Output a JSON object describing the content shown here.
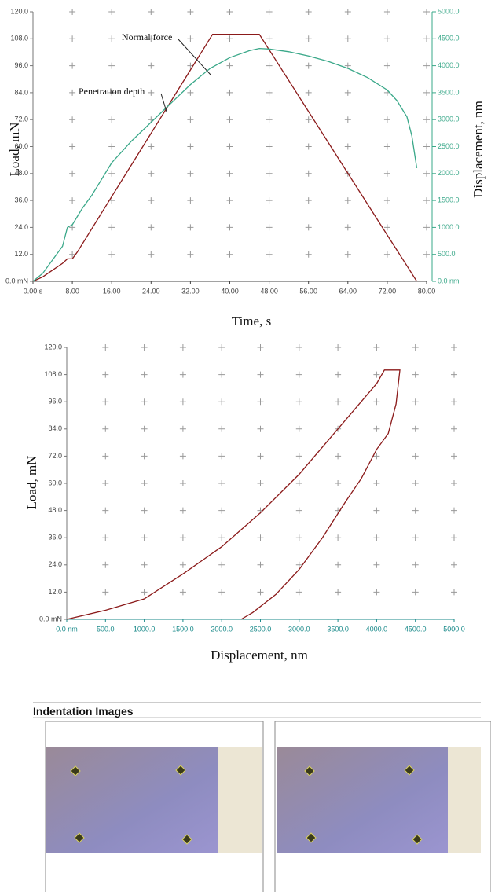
{
  "chart_data": [
    {
      "type": "line",
      "y_label": "Load, mN",
      "y2_label": "Displacement, nm",
      "x_label": "Time, s",
      "xlim": [
        0,
        80
      ],
      "xticks": [
        {
          "value": 0,
          "label": "0.00 s"
        },
        {
          "value": 8,
          "label": "8.00"
        },
        {
          "value": 16,
          "label": "16.00"
        },
        {
          "value": 24,
          "label": "24.00"
        },
        {
          "value": 32,
          "label": "32.00"
        },
        {
          "value": 40,
          "label": "40.00"
        },
        {
          "value": 48,
          "label": "48.00"
        },
        {
          "value": 56,
          "label": "56.00"
        },
        {
          "value": 64,
          "label": "64.00"
        },
        {
          "value": 72,
          "label": "72.00"
        },
        {
          "value": 80,
          "label": "80.00"
        }
      ],
      "ylim": [
        0,
        120
      ],
      "yticks": [
        {
          "value": 0,
          "label": "0.0 mN"
        },
        {
          "value": 12,
          "label": "12.0"
        },
        {
          "value": 24,
          "label": "24.0"
        },
        {
          "value": 36,
          "label": "36.0"
        },
        {
          "value": 48,
          "label": "48.0"
        },
        {
          "value": 60,
          "label": "60.0"
        },
        {
          "value": 72,
          "label": "72.0"
        },
        {
          "value": 84,
          "label": "84.0"
        },
        {
          "value": 96,
          "label": "96.0"
        },
        {
          "value": 108,
          "label": "108.0"
        },
        {
          "value": 120,
          "label": "120.0"
        }
      ],
      "y2lim": [
        0,
        5000
      ],
      "y2ticks": [
        {
          "value": 0,
          "label": "0.0 nm"
        },
        {
          "value": 500,
          "label": "500.0"
        },
        {
          "value": 1000,
          "label": "1000.0"
        },
        {
          "value": 1500,
          "label": "1500.0"
        },
        {
          "value": 2000,
          "label": "2000.0"
        },
        {
          "value": 2500,
          "label": "2500.0"
        },
        {
          "value": 3000,
          "label": "3000.0"
        },
        {
          "value": 3500,
          "label": "3500.0"
        },
        {
          "value": 4000,
          "label": "4000.0"
        },
        {
          "value": 4500,
          "label": "4500.0"
        },
        {
          "value": 5000,
          "label": "5000.0"
        }
      ],
      "grid": true,
      "series": [
        {
          "name": "Normal force",
          "color": "#8b1a1a",
          "x": [
            0,
            2,
            4,
            6,
            7,
            8,
            9,
            16,
            24,
            32,
            36.5,
            40,
            46,
            56,
            64,
            72,
            76,
            78
          ],
          "values": [
            0,
            2,
            5,
            8,
            10,
            10,
            13,
            37.7,
            65.9,
            94.1,
            110,
            110,
            110,
            75.6,
            48.1,
            20.6,
            6.9,
            0
          ]
        },
        {
          "name": "Penetration depth",
          "color": "#3aa889",
          "axis": "y2",
          "x": [
            0,
            2,
            4,
            6,
            7,
            8,
            10,
            12,
            16,
            20,
            24,
            28,
            32,
            36,
            40,
            44,
            46,
            48,
            52,
            56,
            60,
            64,
            68,
            72,
            74,
            76,
            77,
            78
          ],
          "values": [
            0,
            150,
            400,
            650,
            1000,
            1050,
            1350,
            1600,
            2200,
            2600,
            2950,
            3300,
            3650,
            3950,
            4150,
            4280,
            4320,
            4310,
            4260,
            4180,
            4080,
            3950,
            3780,
            3550,
            3350,
            3050,
            2700,
            2100
          ]
        }
      ]
    },
    {
      "type": "line",
      "y_label": "Load, mN",
      "x_label": "Displacement, nm",
      "xlim": [
        0,
        5000
      ],
      "xticks": [
        {
          "value": 0,
          "label": "0.0 nm"
        },
        {
          "value": 500,
          "label": "500.0"
        },
        {
          "value": 1000,
          "label": "1000.0"
        },
        {
          "value": 1500,
          "label": "1500.0"
        },
        {
          "value": 2000,
          "label": "2000.0"
        },
        {
          "value": 2500,
          "label": "2500.0"
        },
        {
          "value": 3000,
          "label": "3000.0"
        },
        {
          "value": 3500,
          "label": "3500.0"
        },
        {
          "value": 4000,
          "label": "4000.0"
        },
        {
          "value": 4500,
          "label": "4500.0"
        },
        {
          "value": 5000,
          "label": "5000.0"
        }
      ],
      "ylim": [
        0,
        120
      ],
      "yticks": [
        {
          "value": 0,
          "label": "0.0 mN"
        },
        {
          "value": 12,
          "label": "12.0"
        },
        {
          "value": 24,
          "label": "24.0"
        },
        {
          "value": 36,
          "label": "36.0"
        },
        {
          "value": 48,
          "label": "48.0"
        },
        {
          "value": 60,
          "label": "60.0"
        },
        {
          "value": 72,
          "label": "72.0"
        },
        {
          "value": 84,
          "label": "84.0"
        },
        {
          "value": 96,
          "label": "96.0"
        },
        {
          "value": 108,
          "label": "108.0"
        },
        {
          "value": 120,
          "label": "120.0"
        }
      ],
      "grid": true,
      "color": "#8b1a1a",
      "x": [
        0,
        500,
        1000,
        1500,
        2000,
        2500,
        3000,
        3500,
        4000,
        4100,
        4300,
        4250,
        4150,
        4000,
        3800,
        3600,
        3300,
        3000,
        2700,
        2400,
        2250
      ],
      "values": [
        0,
        4,
        9,
        20,
        32,
        47,
        64,
        84,
        104,
        110,
        110,
        95,
        82,
        75,
        62,
        52,
        36,
        22,
        11,
        3,
        0
      ]
    }
  ],
  "section": {
    "title": "Indentation Images"
  }
}
